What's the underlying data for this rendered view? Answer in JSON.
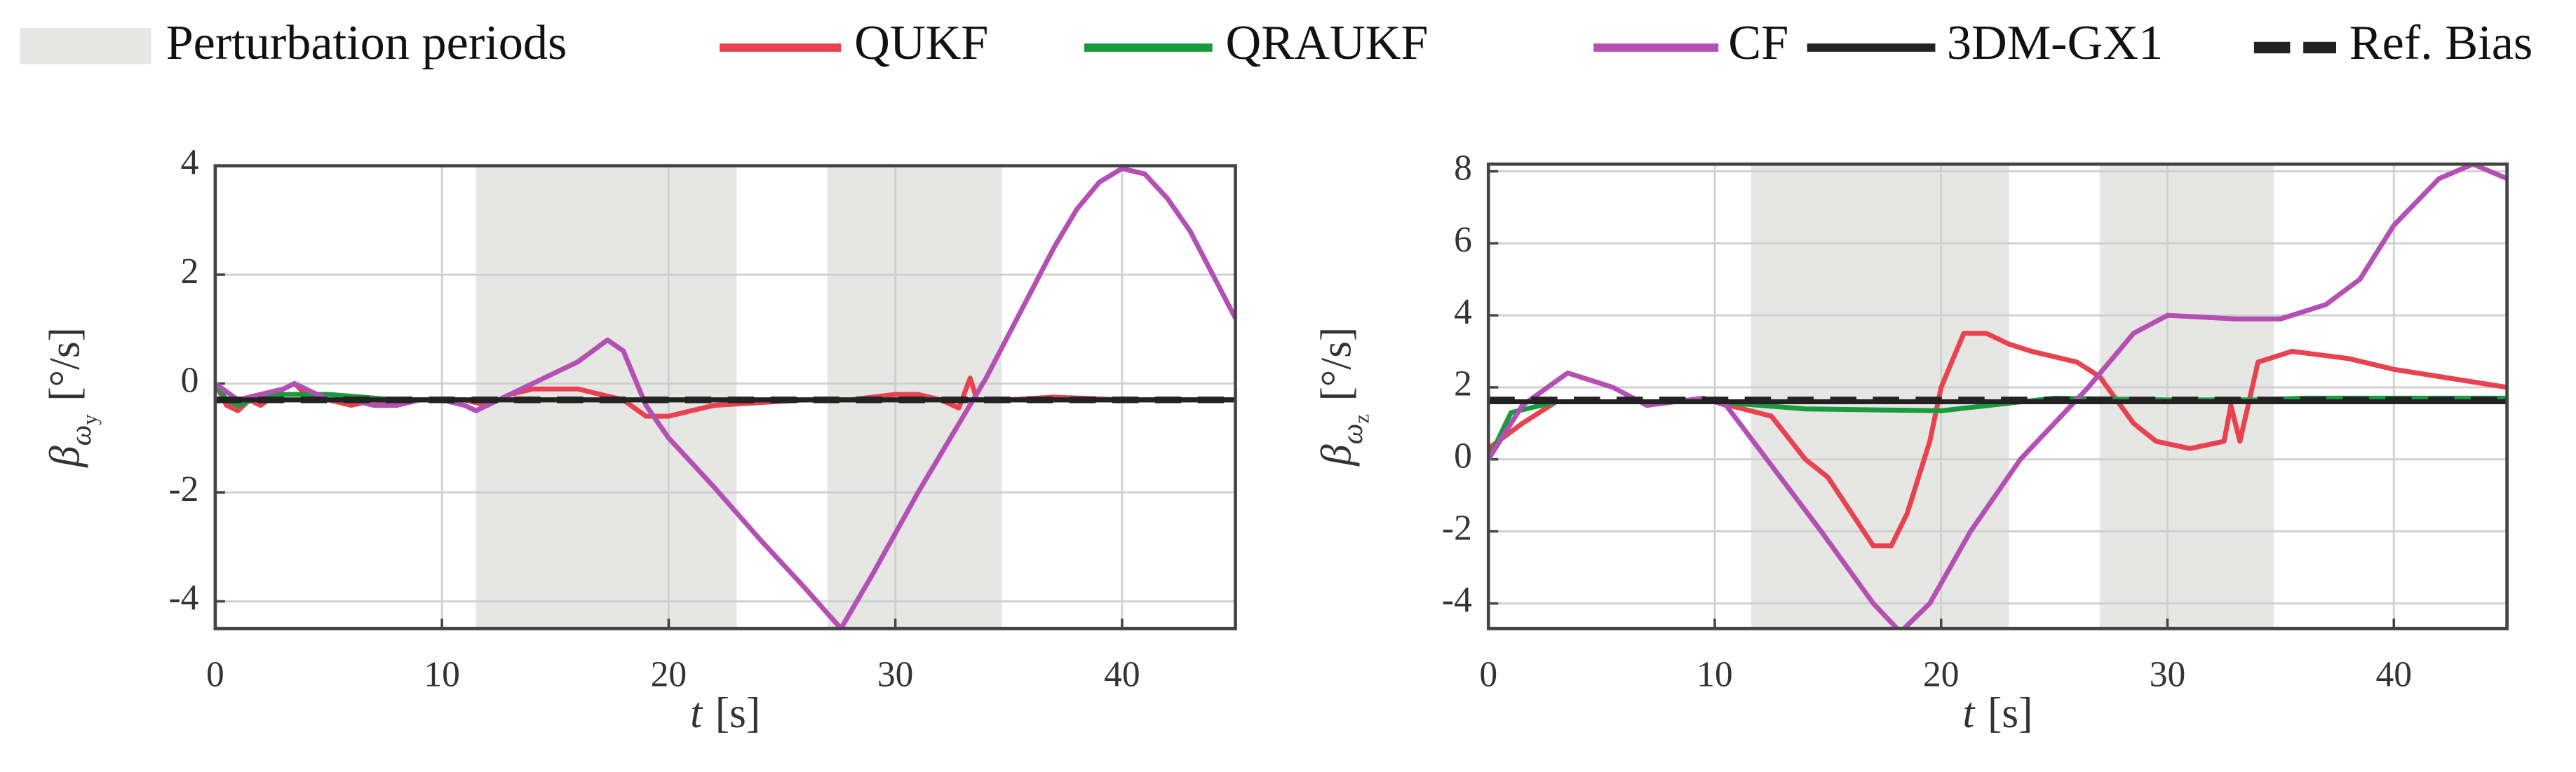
{
  "chart_data": [
    {
      "type": "line",
      "regions": {
        "label": "Perturbation periods",
        "color": "#e6e6e4",
        "spans": [
          [
            11.5,
            23
          ],
          [
            27,
            34.7
          ]
        ]
      },
      "xlabel": {
        "symbol": "t",
        "unit": "[s]"
      },
      "ylabel": {
        "symbol": "β",
        "subscript": "ω",
        "subsubscript": "y",
        "unit": "[°/s]"
      },
      "xlim": [
        0,
        45
      ],
      "xticks": [
        0,
        10,
        20,
        30,
        40
      ],
      "ylim": [
        -4.5,
        4
      ],
      "yticks": [
        -4,
        -2,
        0,
        2,
        4
      ],
      "grid": true,
      "series": [
        {
          "name": "QUKF",
          "color": "#e8414f",
          "x": [
            0,
            0.5,
            1,
            1.5,
            2,
            3,
            3.5,
            4,
            5,
            6,
            7,
            8,
            9,
            10,
            11,
            12,
            13,
            14,
            15,
            16,
            17,
            18,
            19,
            20,
            21,
            22,
            24,
            26,
            28,
            30,
            31,
            32,
            32.8,
            33.3,
            33.6,
            34,
            35,
            37,
            40,
            45
          ],
          "values": [
            0,
            -0.4,
            -0.5,
            -0.3,
            -0.4,
            -0.1,
            0.0,
            -0.2,
            -0.3,
            -0.4,
            -0.3,
            -0.4,
            -0.3,
            -0.3,
            -0.3,
            -0.4,
            -0.2,
            -0.1,
            -0.1,
            -0.1,
            -0.2,
            -0.3,
            -0.6,
            -0.6,
            -0.5,
            -0.4,
            -0.35,
            -0.3,
            -0.3,
            -0.2,
            -0.2,
            -0.3,
            -0.45,
            0.1,
            -0.3,
            -0.3,
            -0.3,
            -0.25,
            -0.3,
            -0.3
          ]
        },
        {
          "name": "QRAUKF",
          "color": "#1a9a3f",
          "x": [
            0,
            0.5,
            1,
            2,
            3,
            5,
            8,
            10,
            15,
            20,
            25,
            30,
            35,
            40,
            45
          ],
          "values": [
            0,
            -0.3,
            -0.4,
            -0.25,
            -0.2,
            -0.2,
            -0.3,
            -0.3,
            -0.3,
            -0.3,
            -0.3,
            -0.3,
            -0.3,
            -0.3,
            -0.3
          ]
        },
        {
          "name": "CF",
          "color": "#b44fb4",
          "x": [
            0,
            1,
            2,
            3,
            3.5,
            4,
            5,
            6,
            7,
            8,
            9,
            10,
            11,
            11.5,
            12.5,
            14,
            16,
            17.3,
            18,
            19,
            20,
            22,
            24,
            26,
            27.6,
            29,
            31,
            33,
            34,
            35,
            36,
            37,
            38,
            39,
            40,
            41,
            42,
            43,
            44,
            45
          ],
          "values": [
            0,
            -0.3,
            -0.2,
            -0.1,
            0.0,
            -0.1,
            -0.3,
            -0.3,
            -0.4,
            -0.4,
            -0.3,
            -0.3,
            -0.4,
            -0.5,
            -0.3,
            0.0,
            0.4,
            0.8,
            0.6,
            -0.4,
            -1.0,
            -1.9,
            -2.85,
            -3.75,
            -4.5,
            -3.5,
            -2.0,
            -0.6,
            0.1,
            0.9,
            1.7,
            2.5,
            3.2,
            3.7,
            3.95,
            3.85,
            3.4,
            2.8,
            2.0,
            1.2
          ]
        },
        {
          "name": "3DM-GX1",
          "color": "#222222",
          "x": [
            0,
            45
          ],
          "values": [
            -0.3,
            -0.3
          ]
        },
        {
          "name": "Ref. Bias",
          "color": "#222222",
          "dash": true,
          "x": [
            0,
            45
          ],
          "values": [
            -0.3,
            -0.3
          ]
        }
      ]
    },
    {
      "type": "line",
      "regions": {
        "label": "Perturbation periods",
        "color": "#e6e6e4",
        "spans": [
          [
            11.6,
            23
          ],
          [
            27,
            34.7
          ]
        ]
      },
      "xlabel": {
        "symbol": "t",
        "unit": "[s]"
      },
      "ylabel": {
        "symbol": "β",
        "subscript": "ω",
        "subsubscript": "z",
        "unit": "[°/s]"
      },
      "xlim": [
        0,
        45
      ],
      "xticks": [
        0,
        10,
        20,
        30,
        40
      ],
      "ylim": [
        -4.7,
        8.2
      ],
      "yticks": [
        -4,
        -2,
        0,
        2,
        4,
        6,
        8
      ],
      "grid": true,
      "series": [
        {
          "name": "QUKF",
          "color": "#e8414f",
          "x": [
            0,
            1.5,
            3,
            10,
            12.5,
            14,
            15,
            17,
            17.8,
            18.5,
            19.5,
            20,
            21,
            22,
            23,
            24,
            26,
            27,
            28.5,
            29.5,
            31,
            32.5,
            32.8,
            33.2,
            34,
            35.5,
            38,
            40,
            43,
            45
          ],
          "values": [
            0.3,
            1.0,
            1.6,
            1.6,
            1.2,
            0,
            -0.5,
            -2.4,
            -2.4,
            -1.5,
            0.5,
            2.0,
            3.5,
            3.5,
            3.2,
            3.0,
            2.7,
            2.3,
            1.0,
            0.5,
            0.3,
            0.5,
            1.5,
            0.5,
            2.7,
            3.0,
            2.8,
            2.5,
            2.2,
            2.0
          ]
        },
        {
          "name": "QRAUKF",
          "color": "#1a9a3f",
          "x": [
            0,
            1,
            3,
            10,
            14,
            20,
            25,
            30,
            34,
            36,
            45
          ],
          "values": [
            0,
            1.3,
            1.6,
            1.6,
            1.4,
            1.35,
            1.7,
            1.65,
            1.65,
            1.7,
            1.7
          ]
        },
        {
          "name": "CF",
          "color": "#b44fb4",
          "x": [
            0,
            1.5,
            3.5,
            5.5,
            7,
            9.5,
            10.5,
            12.3,
            14.7,
            17,
            18.2,
            19.5,
            21.3,
            23.5,
            26.5,
            28.5,
            30,
            33,
            35,
            37,
            38.5,
            40,
            42,
            43.5,
            45
          ],
          "values": [
            0,
            1.5,
            2.4,
            2.0,
            1.5,
            1.7,
            1.5,
            0,
            -2,
            -4,
            -4.8,
            -4,
            -2,
            0,
            2,
            3.5,
            4,
            3.9,
            3.9,
            4.3,
            5,
            6.5,
            7.8,
            8.2,
            7.8
          ]
        },
        {
          "name": "3DM-GX1",
          "color": "#222222",
          "x": [
            0,
            45
          ],
          "values": [
            1.6,
            1.6
          ]
        },
        {
          "name": "Ref. Bias",
          "color": "#222222",
          "dash": true,
          "x": [
            0,
            45
          ],
          "values": [
            1.65,
            1.65
          ]
        }
      ]
    }
  ]
}
